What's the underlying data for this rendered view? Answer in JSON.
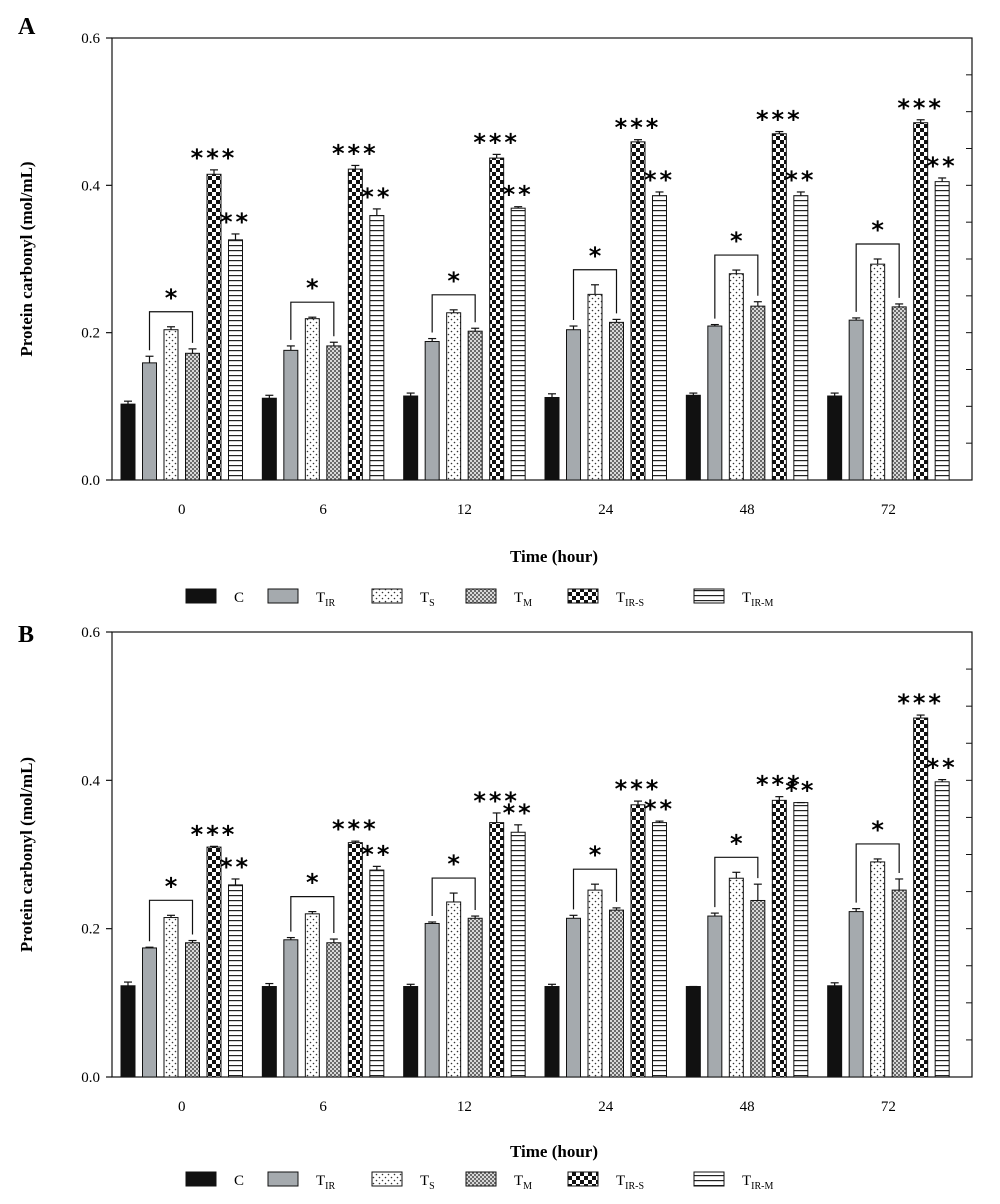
{
  "legend": {
    "entries": [
      {
        "key": "C",
        "base": "C",
        "sub": ""
      },
      {
        "key": "T_IR",
        "base": "T",
        "sub": "IR"
      },
      {
        "key": "T_S",
        "base": "T",
        "sub": "S"
      },
      {
        "key": "T_M",
        "base": "T",
        "sub": "M"
      },
      {
        "key": "T_IR-S",
        "base": "T",
        "sub": "IR-S"
      },
      {
        "key": "T_IR-M",
        "base": "T",
        "sub": "IR-M"
      }
    ]
  },
  "chart_data": [
    {
      "type": "bar",
      "panel_label": "A",
      "xlabel": "Time (hour)",
      "ylabel": "Protein carbonyl  (mol/mL)",
      "ylim": [
        0,
        0.6
      ],
      "yticks": [
        "0.0",
        "0.2",
        "0.4",
        "0.6"
      ],
      "categories": [
        "0",
        "6",
        "12",
        "24",
        "48",
        "72"
      ],
      "series": [
        {
          "name": "C",
          "values": [
            0.103,
            0.111,
            0.114,
            0.112,
            0.115,
            0.114
          ],
          "errors": [
            0.004,
            0.004,
            0.004,
            0.005,
            0.003,
            0.004
          ]
        },
        {
          "name": "T_IR",
          "values": [
            0.159,
            0.176,
            0.188,
            0.204,
            0.209,
            0.217
          ],
          "errors": [
            0.009,
            0.006,
            0.004,
            0.005,
            0.002,
            0.003
          ]
        },
        {
          "name": "T_S",
          "values": [
            0.204,
            0.219,
            0.227,
            0.252,
            0.28,
            0.293
          ],
          "errors": [
            0.004,
            0.002,
            0.004,
            0.013,
            0.005,
            0.007
          ]
        },
        {
          "name": "T_M",
          "values": [
            0.172,
            0.182,
            0.202,
            0.214,
            0.236,
            0.235
          ],
          "errors": [
            0.006,
            0.005,
            0.004,
            0.004,
            0.006,
            0.004
          ]
        },
        {
          "name": "T_IR-S",
          "values": [
            0.415,
            0.422,
            0.437,
            0.459,
            0.47,
            0.485
          ],
          "errors": [
            0.006,
            0.005,
            0.005,
            0.003,
            0.003,
            0.004
          ]
        },
        {
          "name": "T_IR-M",
          "values": [
            0.326,
            0.359,
            0.369,
            0.386,
            0.386,
            0.405
          ],
          "errors": [
            0.008,
            0.009,
            0.002,
            0.005,
            0.005,
            0.005
          ]
        }
      ],
      "annotations": [
        {
          "text": "*",
          "bracket": [
            "T_IR",
            "T_M"
          ]
        },
        {
          "text": "***",
          "over": "T_IR-S"
        },
        {
          "text": "**",
          "over": "T_IR-M"
        }
      ]
    },
    {
      "type": "bar",
      "panel_label": "B",
      "xlabel": "Time (hour)",
      "ylabel": "Protein carbonyl (mol/mL)",
      "ylim": [
        0,
        0.6
      ],
      "yticks": [
        "0.0",
        "0.2",
        "0.4",
        "0.6"
      ],
      "categories": [
        "0",
        "6",
        "12",
        "24",
        "48",
        "72"
      ],
      "series": [
        {
          "name": "C",
          "values": [
            0.123,
            0.122,
            0.122,
            0.122,
            0.122,
            0.123
          ],
          "errors": [
            0.005,
            0.004,
            0.003,
            0.003,
            0.0,
            0.004
          ]
        },
        {
          "name": "T_IR",
          "values": [
            0.174,
            0.185,
            0.207,
            0.214,
            0.217,
            0.223
          ],
          "errors": [
            0.001,
            0.003,
            0.002,
            0.004,
            0.004,
            0.004
          ]
        },
        {
          "name": "T_S",
          "values": [
            0.215,
            0.22,
            0.236,
            0.252,
            0.268,
            0.29
          ],
          "errors": [
            0.003,
            0.003,
            0.012,
            0.008,
            0.008,
            0.004
          ]
        },
        {
          "name": "T_M",
          "values": [
            0.181,
            0.181,
            0.214,
            0.225,
            0.238,
            0.252
          ],
          "errors": [
            0.003,
            0.005,
            0.003,
            0.003,
            0.022,
            0.015
          ]
        },
        {
          "name": "T_IR-S",
          "values": [
            0.31,
            0.316,
            0.343,
            0.367,
            0.373,
            0.484
          ],
          "errors": [
            0.001,
            0.002,
            0.013,
            0.005,
            0.005,
            0.004
          ]
        },
        {
          "name": "T_IR-M",
          "values": [
            0.259,
            0.279,
            0.33,
            0.343,
            0.37,
            0.398
          ],
          "errors": [
            0.008,
            0.005,
            0.01,
            0.002,
            0.0,
            0.003
          ]
        }
      ],
      "annotations": [
        {
          "text": "*",
          "bracket": [
            "T_IR",
            "T_M"
          ]
        },
        {
          "text": "***",
          "over": "T_IR-S"
        },
        {
          "text": "**",
          "over": "T_IR-M"
        }
      ]
    }
  ]
}
